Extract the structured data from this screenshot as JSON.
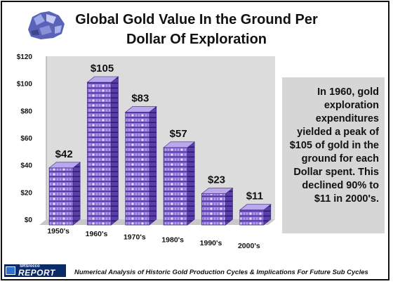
{
  "title_line1": "Global Gold Value In the Ground Per",
  "title_line2": "Dollar Of Exploration",
  "note": "In 1960, gold exploration expenditures yielded a peak of $105 of gold in the ground for each Dollar spent.  This declined 90% to $11 in 2000's.",
  "footer": "Numerical Analysis of Historic Gold Production Cycles & Implications For Future Sub Cycles",
  "logo_line1": "SRSrocco",
  "logo_line2": "REPORT",
  "colors": {
    "bar": "#7a5cc0",
    "bar_dark": "#3b2480",
    "wall": "#dcdcdc",
    "floor": "#c8c8c8"
  },
  "chart_data": {
    "type": "bar",
    "categories": [
      "1950's",
      "1960's",
      "1970's",
      "1980's",
      "1990's",
      "2000's"
    ],
    "values": [
      42,
      105,
      83,
      57,
      23,
      11
    ],
    "data_labels": [
      "$42",
      "$105",
      "$83",
      "$57",
      "$23",
      "$11"
    ],
    "ylim": [
      0,
      120
    ],
    "yticks": [
      0,
      20,
      40,
      60,
      80,
      100,
      120
    ],
    "ytick_labels": [
      "$0",
      "$20",
      "$40",
      "$60",
      "$80",
      "$100",
      "$120"
    ],
    "grid": false,
    "legend": "none"
  }
}
